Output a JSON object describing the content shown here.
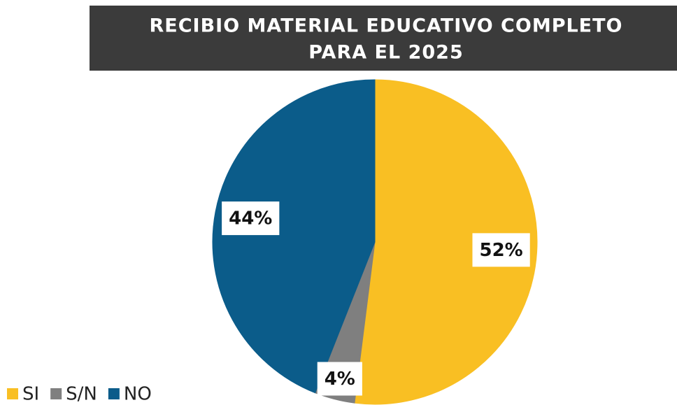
{
  "chart_data": {
    "type": "pie",
    "title": [
      "RECIBIO MATERIAL EDUCATIVO COMPLETO",
      "PARA EL 2025"
    ],
    "categories": [
      "SI",
      "S/N",
      "NO"
    ],
    "values": [
      52,
      4,
      44
    ],
    "value_labels": [
      "52%",
      "4%",
      "44%"
    ],
    "colors": [
      "#f9bf23",
      "#7f7f7f",
      "#0b5c8a"
    ],
    "legend": "bottom-left"
  }
}
